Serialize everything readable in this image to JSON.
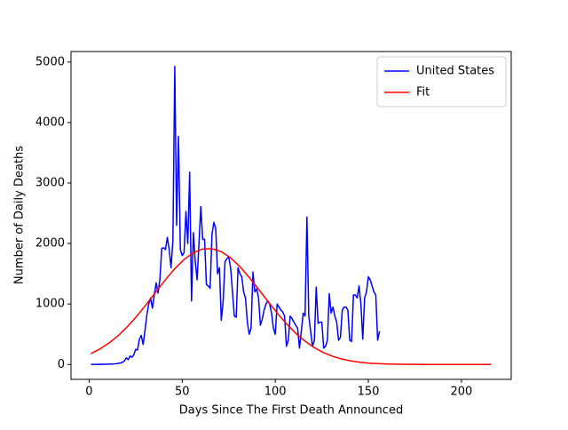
{
  "chart_data": {
    "type": "line",
    "xlabel": "Days Since The First Death Announced",
    "ylabel": "Number of Daily Deaths",
    "xlim": [
      -9.75,
      226.75
    ],
    "xticks": [
      0,
      50,
      100,
      150,
      200
    ],
    "ylim": [
      -246,
      5174
    ],
    "yticks": [
      0,
      1000,
      2000,
      3000,
      4000,
      5000
    ],
    "legend": "upper right",
    "series": [
      {
        "name": "United States",
        "color": "#0000ff",
        "x": [
          1,
          2,
          3,
          4,
          5,
          6,
          7,
          8,
          9,
          10,
          11,
          12,
          13,
          14,
          15,
          16,
          17,
          18,
          19,
          20,
          21,
          22,
          23,
          24,
          25,
          26,
          27,
          28,
          29,
          30,
          31,
          32,
          33,
          34,
          35,
          36,
          37,
          38,
          39,
          40,
          41,
          42,
          43,
          44,
          45,
          46,
          47,
          48,
          49,
          50,
          51,
          52,
          53,
          54,
          55,
          56,
          57,
          58,
          59,
          60,
          61,
          62,
          63,
          64,
          65,
          66,
          67,
          68,
          69,
          70,
          71,
          72,
          73,
          74,
          75,
          76,
          77,
          78,
          79,
          80,
          81,
          82,
          83,
          84,
          85,
          86,
          87,
          88,
          89,
          90,
          91,
          92,
          93,
          94,
          95,
          96,
          97,
          98,
          99,
          100,
          101,
          102,
          103,
          104,
          105,
          106,
          107,
          108,
          109,
          110,
          111,
          112,
          113,
          114,
          115,
          116,
          117,
          118,
          119,
          120,
          121,
          122,
          123,
          124,
          125,
          126,
          127,
          128,
          129,
          130,
          131,
          132,
          133,
          134,
          135,
          136,
          137,
          138,
          139,
          140,
          141,
          142,
          143,
          144,
          145,
          146,
          147,
          148,
          149,
          150,
          151,
          152,
          153,
          154,
          155,
          156
        ],
        "values": [
          0,
          0,
          1,
          1,
          2,
          3,
          2,
          4,
          3,
          5,
          7,
          8,
          10,
          12,
          15,
          20,
          25,
          40,
          60,
          110,
          80,
          140,
          120,
          160,
          250,
          240,
          420,
          480,
          330,
          560,
          820,
          1000,
          1100,
          930,
          1150,
          1350,
          1180,
          1400,
          1920,
          1930,
          1900,
          2100,
          1900,
          1600,
          2050,
          4928,
          2300,
          3770,
          1900,
          1800,
          1850,
          2530,
          2000,
          3180,
          1050,
          2180,
          1700,
          1400,
          2000,
          2610,
          2070,
          2070,
          1320,
          1300,
          1260,
          2150,
          2350,
          2250,
          1500,
          1600,
          730,
          1050,
          1700,
          1750,
          1780,
          1600,
          1200,
          800,
          780,
          1600,
          1500,
          1450,
          1200,
          1100,
          700,
          500,
          600,
          1530,
          1200,
          1250,
          1100,
          650,
          750,
          900,
          1000,
          1050,
          1000,
          850,
          600,
          500,
          1000,
          950,
          900,
          870,
          800,
          300,
          400,
          800,
          760,
          700,
          650,
          600,
          270,
          550,
          850,
          800,
          2440,
          800,
          550,
          300,
          400,
          1280,
          680,
          700,
          700,
          270,
          300,
          400,
          1170,
          850,
          950,
          800,
          700,
          400,
          450,
          900,
          950,
          950,
          900,
          400,
          380,
          1150,
          1150,
          1100,
          1300,
          1000,
          420,
          1100,
          1200,
          1450,
          1400,
          1300,
          1200,
          1150,
          400,
          550
        ]
      },
      {
        "name": "Fit",
        "color": "#ff0000",
        "x": [
          1,
          6,
          11,
          16,
          21,
          26,
          31,
          36,
          41,
          46,
          51,
          56,
          61,
          66,
          71,
          76,
          81,
          86,
          91,
          96,
          101,
          106,
          111,
          116,
          121,
          126,
          131,
          136,
          141,
          146,
          151,
          156,
          161,
          166,
          171,
          176,
          181,
          186,
          191,
          196,
          201,
          206,
          211,
          216
        ],
        "values": [
          181,
          260,
          361,
          488,
          640,
          814,
          1005,
          1205,
          1402,
          1584,
          1736,
          1848,
          1910,
          1915,
          1865,
          1763,
          1617,
          1440,
          1245,
          1045,
          851,
          673,
          516,
          385,
          278,
          195,
          133,
          88,
          57,
          35,
          21,
          13,
          7,
          4,
          2,
          1,
          0,
          0,
          0,
          0,
          0,
          0,
          0,
          0
        ]
      }
    ]
  }
}
